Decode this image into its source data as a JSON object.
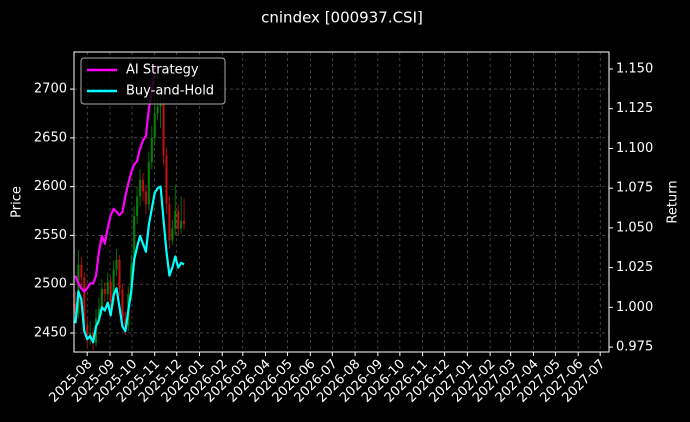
{
  "chart_data": {
    "type": "candlestick",
    "title": "cnindex [000937.CSI]",
    "ylabel": "Price",
    "y2label": "Return",
    "x": [
      "2025-07-16",
      "2025-07-20",
      "2025-07-24",
      "2025-07-28",
      "2025-08-01",
      "2025-08-05",
      "2025-08-09",
      "2025-08-13",
      "2025-08-17",
      "2025-08-21",
      "2025-08-25",
      "2025-08-29",
      "2025-09-02",
      "2025-09-06",
      "2025-09-10",
      "2025-09-14",
      "2025-09-18",
      "2025-09-22",
      "2025-09-26",
      "2025-09-30",
      "2025-10-04",
      "2025-10-08",
      "2025-10-12",
      "2025-10-16",
      "2025-10-20",
      "2025-10-24",
      "2025-10-28",
      "2025-11-01",
      "2025-11-05",
      "2025-11-09",
      "2025-11-13",
      "2025-11-17",
      "2025-11-21",
      "2025-11-25",
      "2025-11-29",
      "2025-12-03",
      "2025-12-07",
      "2025-12-11"
    ],
    "open": [
      2480,
      2470,
      2520,
      2507,
      2458,
      2445,
      2450,
      2440,
      2465,
      2475,
      2495,
      2490,
      2502,
      2482,
      2515,
      2525,
      2495,
      2465,
      2458,
      2490,
      2520,
      2570,
      2590,
      2607,
      2595,
      2582,
      2625,
      2650,
      2675,
      2682,
      2685,
      2632,
      2582,
      2545,
      2557,
      2575,
      2557,
      2565
    ],
    "high": [
      2492,
      2535,
      2528,
      2512,
      2466,
      2462,
      2455,
      2474,
      2486,
      2505,
      2502,
      2512,
      2508,
      2524,
      2536,
      2530,
      2500,
      2472,
      2498,
      2530,
      2580,
      2600,
      2618,
      2614,
      2602,
      2636,
      2662,
      2690,
      2718,
      2700,
      2692,
      2640,
      2590,
      2566,
      2602,
      2582,
      2590,
      2588
    ],
    "low": [
      2462,
      2465,
      2498,
      2450,
      2436,
      2438,
      2432,
      2436,
      2458,
      2468,
      2482,
      2484,
      2476,
      2478,
      2508,
      2488,
      2458,
      2448,
      2452,
      2485,
      2514,
      2562,
      2580,
      2585,
      2572,
      2576,
      2618,
      2642,
      2668,
      2660,
      2622,
      2572,
      2536,
      2540,
      2550,
      2550,
      2552,
      2556
    ],
    "close": [
      2470,
      2520,
      2507,
      2458,
      2445,
      2450,
      2440,
      2465,
      2475,
      2495,
      2490,
      2502,
      2482,
      2515,
      2525,
      2495,
      2465,
      2458,
      2490,
      2520,
      2570,
      2590,
      2607,
      2595,
      2582,
      2625,
      2650,
      2675,
      2682,
      2685,
      2632,
      2582,
      2545,
      2557,
      2575,
      2557,
      2565,
      2562
    ],
    "up_color": "#0a8a0a",
    "down_color": "#d01010",
    "series": [
      {
        "name": "AI Strategy",
        "color": "#ff00ff",
        "axis": "y2",
        "values": [
          1.02,
          1.015,
          1.012,
          1.01,
          1.012,
          1.015,
          1.015,
          1.02,
          1.035,
          1.045,
          1.04,
          1.05,
          1.058,
          1.062,
          1.06,
          1.058,
          1.06,
          1.07,
          1.078,
          1.085,
          1.09,
          1.092,
          1.1,
          1.105,
          1.108,
          1.125,
          1.135,
          1.15,
          1.152,
          null,
          null,
          null,
          null,
          null,
          null,
          null,
          null,
          null
        ]
      },
      {
        "name": "Buy-and-Hold",
        "color": "#00ffff",
        "axis": "y2",
        "values": [
          0.99,
          1.01,
          1.005,
          0.985,
          0.98,
          0.982,
          0.978,
          0.988,
          0.992,
          1.0,
          0.998,
          1.003,
          0.995,
          1.008,
          1.012,
          1.0,
          0.988,
          0.985,
          0.998,
          1.01,
          1.03,
          1.038,
          1.045,
          1.04,
          1.035,
          1.052,
          1.062,
          1.072,
          1.075,
          1.076,
          1.055,
          1.035,
          1.02,
          1.025,
          1.032,
          1.025,
          1.028,
          1.027
        ]
      }
    ],
    "xlim": [
      "2025-07-14",
      "2027-07-13"
    ],
    "xticks": [
      "2025-08",
      "2025-09",
      "2025-10",
      "2025-11",
      "2025-12",
      "2026-01",
      "2026-02",
      "2026-03",
      "2026-04",
      "2026-05",
      "2026-06",
      "2026-07",
      "2026-08",
      "2026-09",
      "2026-10",
      "2026-11",
      "2026-12",
      "2027-01",
      "2027-02",
      "2027-03",
      "2027-04",
      "2027-05",
      "2027-06",
      "2027-07"
    ],
    "ylim": [
      2430.5,
      2738
    ],
    "yticks": [
      2450,
      2500,
      2550,
      2600,
      2650,
      2700
    ],
    "y2lim": [
      0.9719,
      1.1607
    ],
    "y2ticks": [
      {
        "value": 0.975,
        "label": "0.975"
      },
      {
        "value": 1.0,
        "label": "1.000"
      },
      {
        "value": 1.025,
        "label": "1.025"
      },
      {
        "value": 1.05,
        "label": "1.050"
      },
      {
        "value": 1.075,
        "label": "1.075"
      },
      {
        "value": 1.1,
        "label": "1.100"
      },
      {
        "value": 1.125,
        "label": "1.125"
      },
      {
        "value": 1.15,
        "label": "1.150"
      }
    ],
    "grid": true,
    "legend": "upper left"
  }
}
